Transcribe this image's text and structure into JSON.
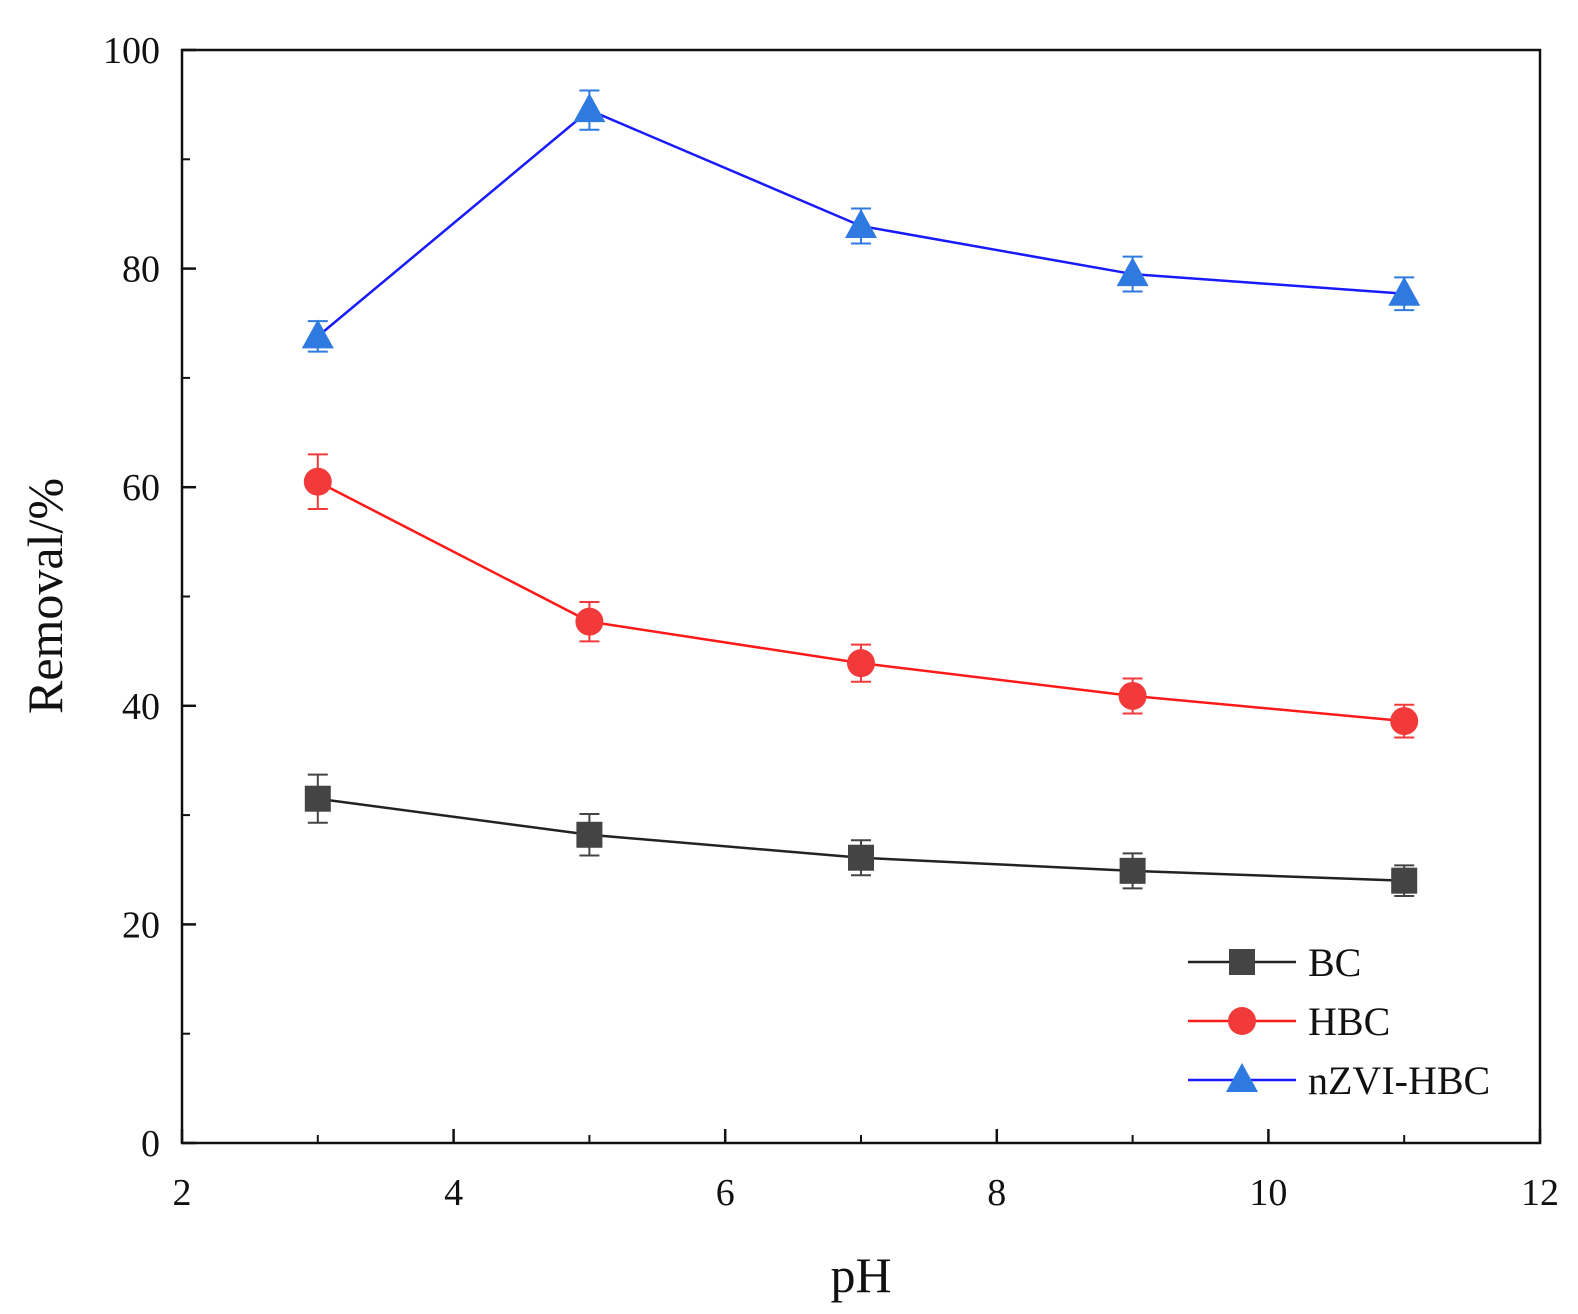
{
  "chart_data": {
    "type": "line",
    "title": "",
    "xlabel": "pH",
    "ylabel": "Removal/%",
    "xlim": [
      2,
      12
    ],
    "ylim": [
      0,
      100
    ],
    "xticks": [
      2,
      4,
      6,
      8,
      10,
      12
    ],
    "yticks": [
      0,
      20,
      40,
      60,
      80,
      100
    ],
    "x": [
      3,
      5,
      7,
      9,
      11
    ],
    "legend_position": "bottom-right",
    "series": [
      {
        "name": "BC",
        "color": "#222222",
        "marker_color": "#444444",
        "marker": "square",
        "values": [
          31.5,
          28.2,
          26.1,
          24.9,
          24.0
        ],
        "errors": [
          2.2,
          1.9,
          1.6,
          1.6,
          1.4
        ]
      },
      {
        "name": "HBC",
        "color": "#ff1a1a",
        "marker_color": "#f23a3a",
        "marker": "circle",
        "values": [
          60.5,
          47.7,
          43.9,
          40.9,
          38.6
        ],
        "errors": [
          2.5,
          1.8,
          1.7,
          1.6,
          1.5
        ]
      },
      {
        "name": "nZVI-HBC",
        "color": "#1a1aff",
        "marker_color": "#2f7ae0",
        "marker": "triangle",
        "values": [
          73.8,
          94.5,
          83.9,
          79.5,
          77.7
        ],
        "errors": [
          1.4,
          1.8,
          1.6,
          1.6,
          1.5
        ]
      }
    ]
  }
}
